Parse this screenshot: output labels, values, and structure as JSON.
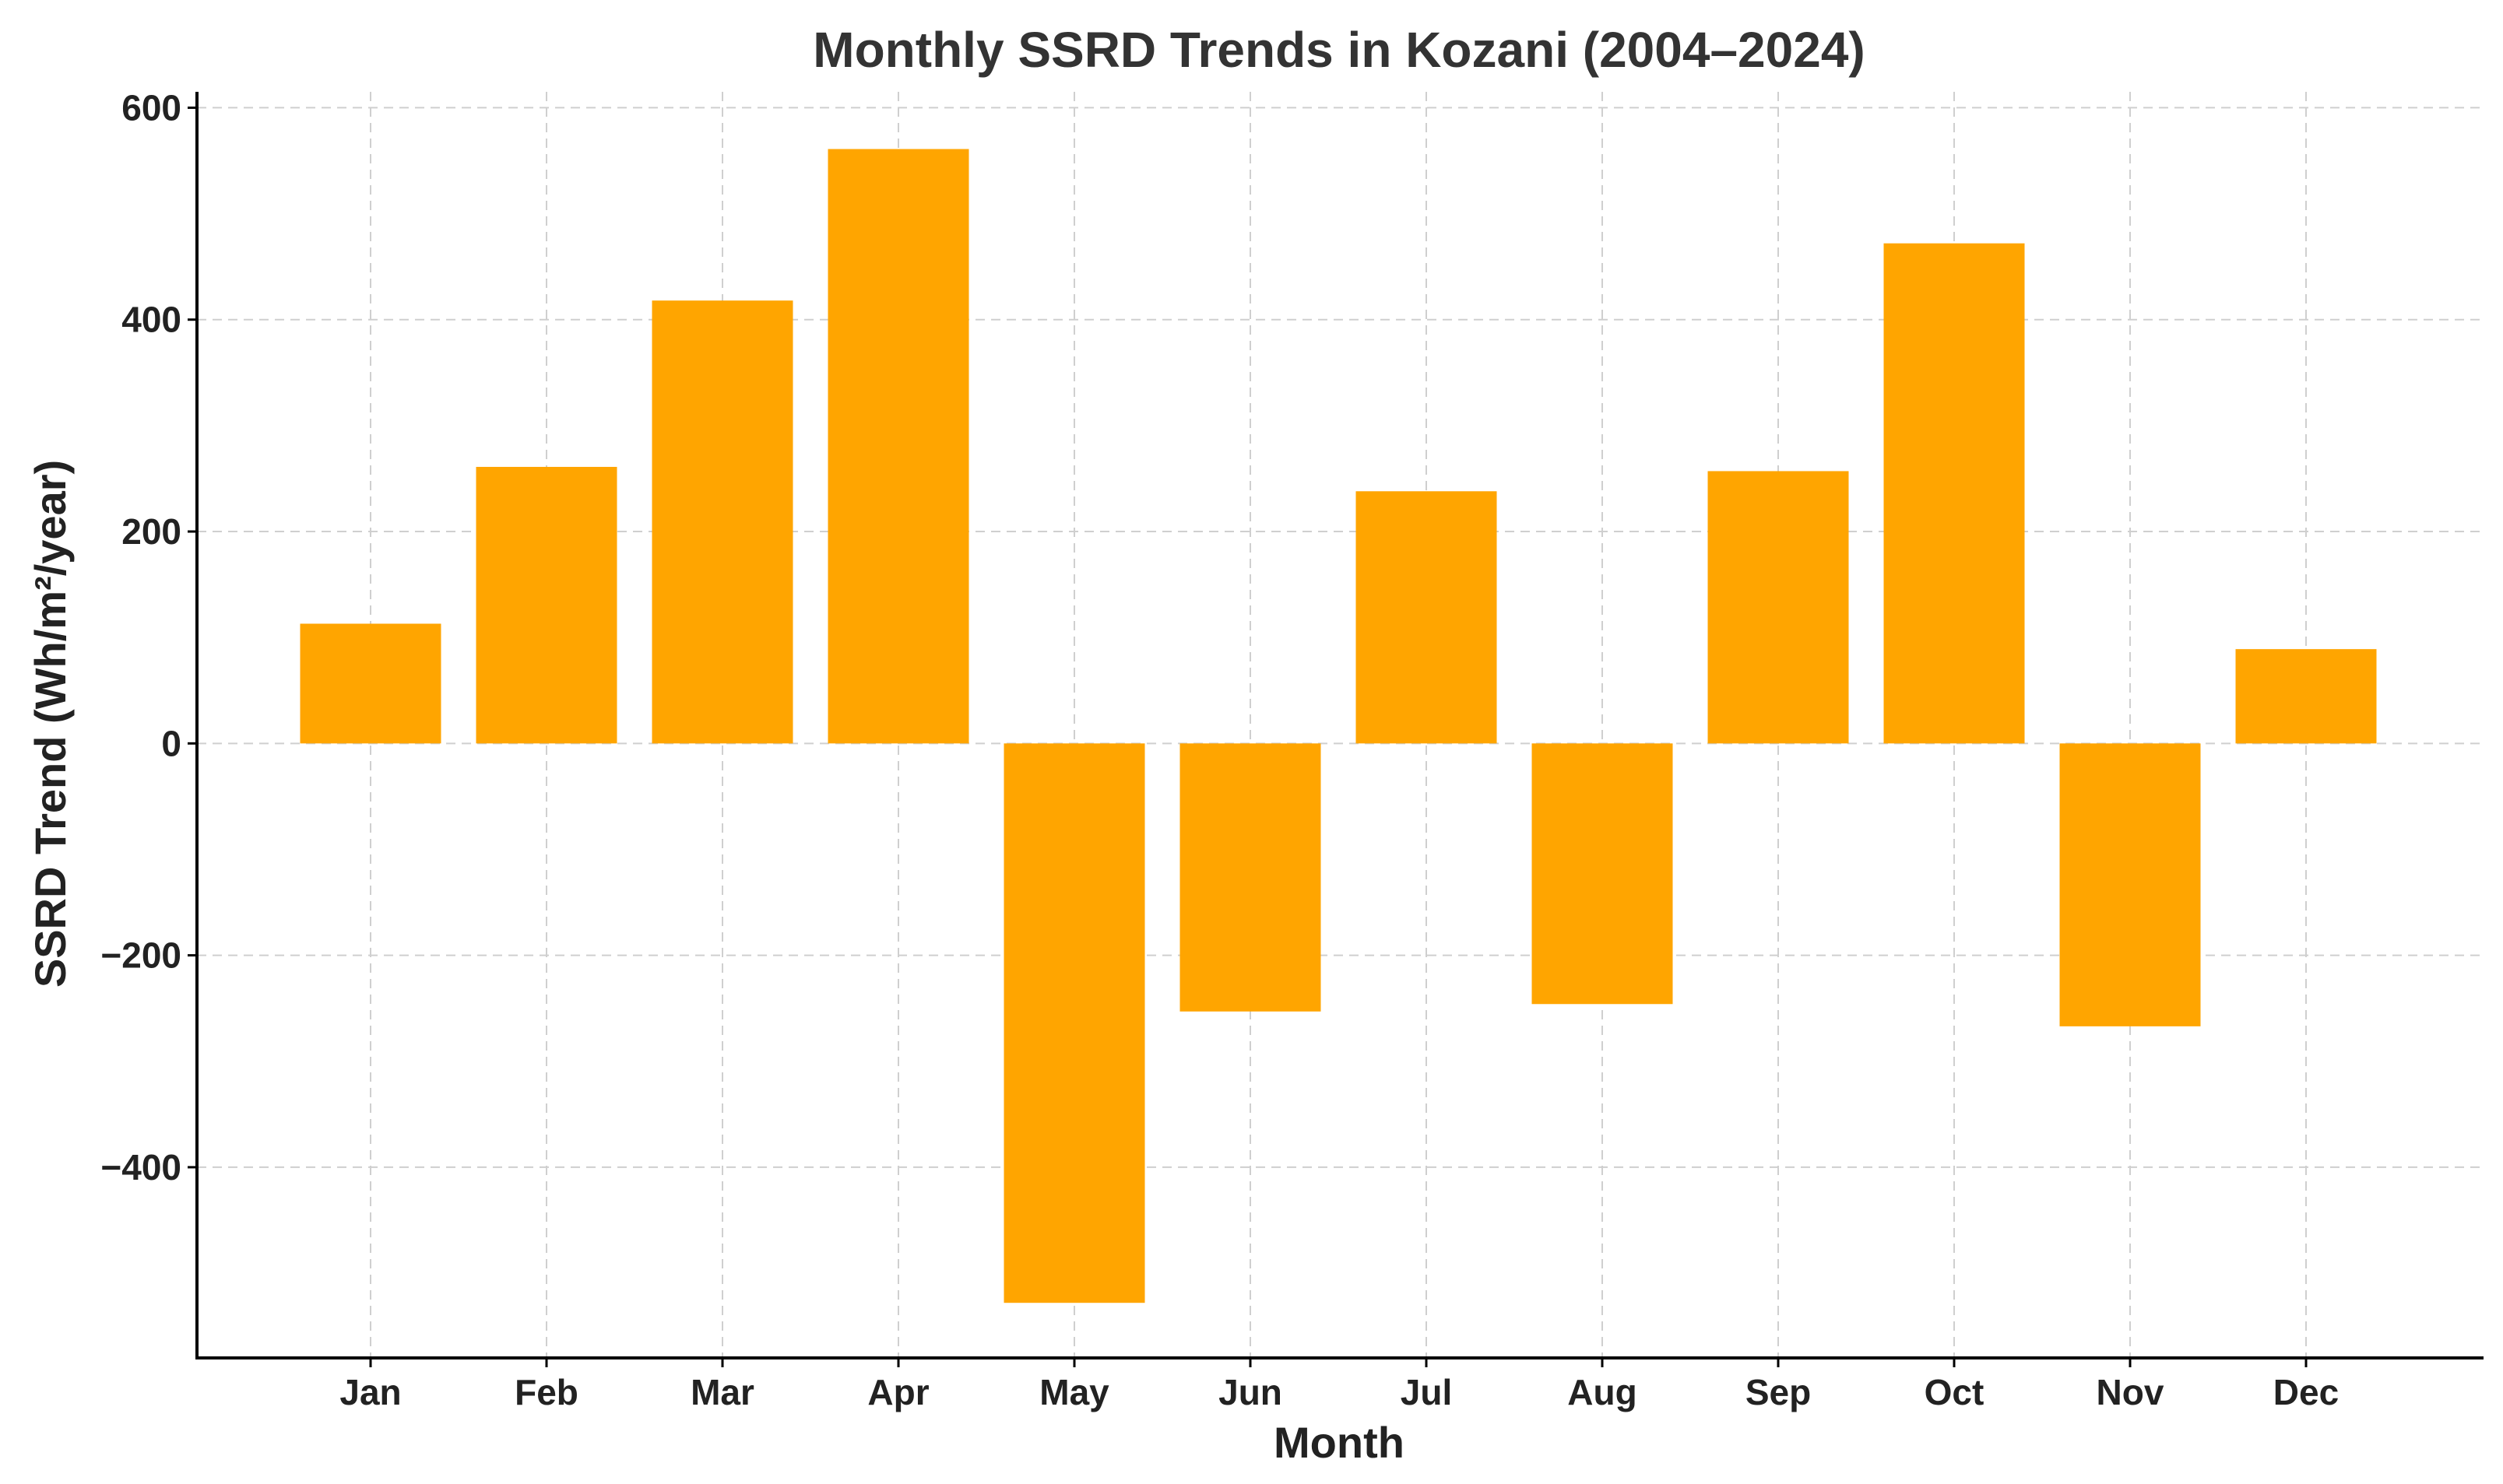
{
  "chart_data": {
    "type": "bar",
    "title": "Monthly SSRD Trends in Kozani (2004–2024)",
    "xlabel": "Month",
    "ylabel": "SSRD Trend (Wh/m²/year)",
    "categories": [
      "Jan",
      "Feb",
      "Mar",
      "Apr",
      "May",
      "Jun",
      "Jul",
      "Aug",
      "Sep",
      "Oct",
      "Nov",
      "Dec"
    ],
    "values": [
      113,
      261,
      418,
      561,
      -528,
      -253,
      238,
      -246,
      257,
      472,
      -267,
      89
    ],
    "ylim": [
      -580,
      615
    ],
    "yticks": [
      -400,
      -200,
      0,
      200,
      400,
      600
    ],
    "ytick_labels": [
      "−400",
      "−200",
      "0",
      "200",
      "400",
      "600"
    ],
    "grid": true,
    "bar_color": "#FFA500"
  }
}
